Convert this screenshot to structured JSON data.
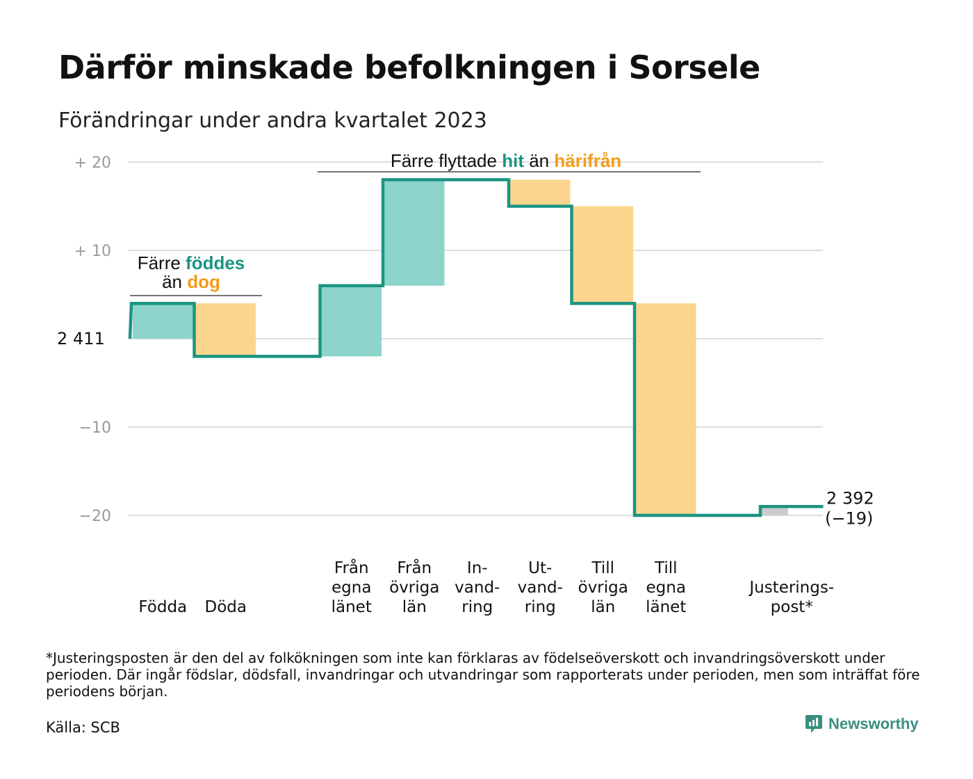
{
  "title": "Därför minskade befolkningen i Sorsele",
  "subtitle": "Förändringar under andra kvartalet 2023",
  "footnote": "*Justeringsposten är den del av folkökningen som inte kan förklaras av födelseöverskott och invandringsöverskott under perioden. Där ingår födslar, dödsfall, invandringar och utvandringar som rapporterats under perioden, men som inträffat före periodens början.",
  "source": "Källa: SCB",
  "brand": "Newsworthy",
  "chart_data": {
    "type": "waterfall",
    "start_value": 2411,
    "start_label": "2  411",
    "end_value": 2392,
    "end_label": "2 392",
    "end_change_label": "(−19)",
    "ylim": [
      -22,
      21
    ],
    "yticks": [
      {
        "value": 20,
        "label": "+  20"
      },
      {
        "value": 10,
        "label": "+  10"
      },
      {
        "value": 0,
        "label": ""
      },
      {
        "value": -10,
        "label": "−10"
      },
      {
        "value": -20,
        "label": "−20"
      }
    ],
    "grid": true,
    "colors": {
      "positive": "#8dd4cb",
      "negative": "#fbd58d",
      "adjustment": "#cccccc",
      "line": "#1b9582"
    },
    "steps": [
      {
        "label": [
          "Födda"
        ],
        "change": 4,
        "kind": "positive"
      },
      {
        "label": [
          "Döda"
        ],
        "change": -6,
        "kind": "negative"
      },
      {
        "label": [],
        "change": 0,
        "kind": "gap"
      },
      {
        "label": [
          "Från",
          "egna",
          "länet"
        ],
        "change": 8,
        "kind": "positive"
      },
      {
        "label": [
          "Från",
          "övriga",
          "län"
        ],
        "change": 12,
        "kind": "positive"
      },
      {
        "label": [
          "In-",
          "vand-",
          "ring"
        ],
        "change": 0,
        "kind": "positive"
      },
      {
        "label": [
          "Ut-",
          "vand-",
          "ring"
        ],
        "change": -3,
        "kind": "negative"
      },
      {
        "label": [
          "Till",
          "övriga",
          "län"
        ],
        "change": -11,
        "kind": "negative"
      },
      {
        "label": [
          "Till",
          "egna",
          "länet"
        ],
        "change": -24,
        "kind": "negative"
      },
      {
        "label": [],
        "change": 0,
        "kind": "gap"
      },
      {
        "label": [
          "Justerings-",
          "post*"
        ],
        "change": 1,
        "kind": "adjustment"
      }
    ],
    "annotations": [
      {
        "lines": [
          [
            {
              "text": "Färre ",
              "color": "#111111"
            },
            {
              "text": "föddes",
              "color": "#1b9582",
              "bold": true
            }
          ],
          [
            {
              "text": "än ",
              "color": "#111111"
            },
            {
              "text": "dog",
              "color": "#f39c19",
              "bold": true
            }
          ]
        ]
      },
      {
        "lines": [
          [
            {
              "text": "Färre flyttade ",
              "color": "#111111"
            },
            {
              "text": "hit",
              "color": "#1b9582",
              "bold": true
            },
            {
              "text": "  än ",
              "color": "#111111"
            },
            {
              "text": "härifrån",
              "color": "#f39c19",
              "bold": true
            }
          ]
        ]
      }
    ]
  }
}
